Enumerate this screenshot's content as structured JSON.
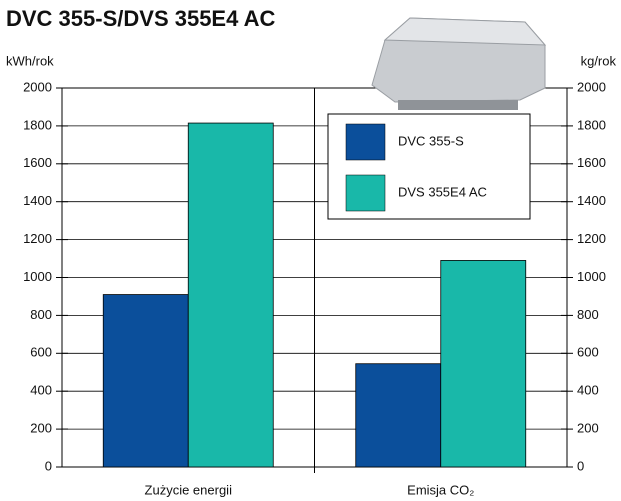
{
  "chart_data": {
    "type": "bar",
    "title": "DVC 355-S/DVS 355E4 AC",
    "y_label": "kWh/rok",
    "y2_label": "kg/rok",
    "categories": [
      "Zużycie energii",
      "Emisja CO₂"
    ],
    "series": [
      {
        "name": "DVC 355-S",
        "color": "#0b4f9b",
        "values": [
          910,
          545
        ]
      },
      {
        "name": "DVS 355E4 AC",
        "color": "#19b8a9",
        "values": [
          1815,
          1090
        ]
      }
    ],
    "ylim": [
      0,
      2000
    ],
    "yticks": [
      0,
      200,
      400,
      600,
      800,
      1000,
      1200,
      1400,
      1600,
      1800,
      2000
    ],
    "y2lim": [
      0,
      2000
    ],
    "y2ticks": [
      0,
      200,
      400,
      600,
      800,
      1000,
      1200,
      1400,
      1600,
      1800,
      2000
    ],
    "grid": true
  }
}
